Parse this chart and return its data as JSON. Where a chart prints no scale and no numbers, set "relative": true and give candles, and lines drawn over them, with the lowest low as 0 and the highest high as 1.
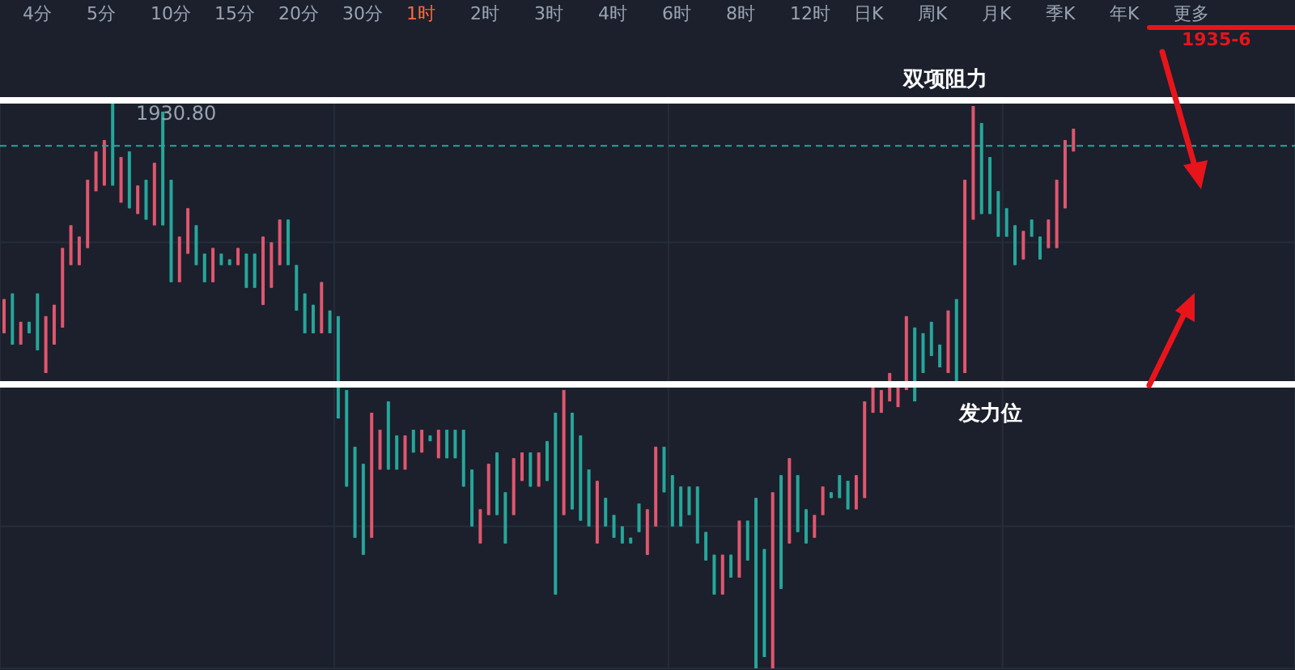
{
  "chart_data": {
    "type": "candlestick",
    "relative": true,
    "grid": true,
    "categories": [
      null,
      null,
      null,
      null,
      null,
      null,
      null,
      null,
      null,
      null,
      null,
      null,
      null,
      null,
      null,
      null,
      null,
      null,
      null,
      null,
      null,
      null,
      null,
      null,
      null,
      null,
      null,
      null,
      null,
      null,
      null,
      null,
      null,
      null,
      null,
      null,
      null,
      null,
      null,
      null,
      null,
      null,
      null,
      null,
      null,
      null,
      null,
      null,
      null,
      null,
      null,
      null,
      null,
      null,
      null,
      null,
      null,
      null,
      null,
      null,
      null,
      null,
      null,
      null,
      null,
      null,
      null,
      null,
      null,
      null,
      null,
      null,
      null,
      null,
      null,
      null,
      null,
      null,
      null,
      null,
      null,
      null,
      null,
      null,
      null,
      null,
      null,
      null,
      null,
      null,
      null,
      null,
      null,
      null,
      null,
      null,
      null,
      null,
      null,
      null,
      null,
      null,
      null,
      null,
      null,
      null,
      null,
      null,
      null,
      null,
      null,
      null,
      null,
      null,
      null,
      null,
      null,
      null,
      null,
      null,
      null,
      null,
      null,
      null,
      null,
      null,
      null,
      null,
      null,
      null,
      null,
      null,
      null,
      null,
      null,
      null,
      null,
      null,
      null,
      null,
      null,
      null,
      null,
      null,
      null,
      null,
      null,
      null,
      null,
      null,
      null,
      null,
      null,
      null,
      null
    ],
    "ohlc": [
      [
        0.59,
        0.65,
        0.59,
        0.65
      ],
      [
        0.66,
        0.66,
        0.57,
        0.57
      ],
      [
        0.57,
        0.61,
        0.57,
        0.61
      ],
      [
        0.61,
        0.61,
        0.59,
        0.59
      ],
      [
        0.66,
        0.66,
        0.56,
        0.56
      ],
      [
        0.52,
        0.62,
        0.52,
        0.62
      ],
      [
        0.57,
        0.64,
        0.57,
        0.64
      ],
      [
        0.6,
        0.74,
        0.6,
        0.74
      ],
      [
        0.71,
        0.78,
        0.71,
        0.78
      ],
      [
        0.71,
        0.76,
        0.71,
        0.76
      ],
      [
        0.74,
        0.86,
        0.74,
        0.86
      ],
      [
        0.84,
        0.91,
        0.84,
        0.91
      ],
      [
        0.85,
        0.93,
        0.85,
        0.93
      ],
      [
        1.0,
        1.0,
        0.85,
        0.85
      ],
      [
        0.82,
        0.9,
        0.82,
        0.9
      ],
      [
        0.91,
        0.91,
        0.81,
        0.81
      ],
      [
        0.8,
        0.85,
        0.8,
        0.85
      ],
      [
        0.86,
        0.86,
        0.79,
        0.79
      ],
      [
        0.78,
        0.89,
        0.78,
        0.89
      ],
      [
        0.98,
        0.98,
        0.78,
        0.78
      ],
      [
        0.86,
        0.86,
        0.68,
        0.68
      ],
      [
        0.68,
        0.76,
        0.68,
        0.76
      ],
      [
        0.73,
        0.81,
        0.73,
        0.81
      ],
      [
        0.78,
        0.78,
        0.71,
        0.71
      ],
      [
        0.73,
        0.73,
        0.68,
        0.68
      ],
      [
        0.68,
        0.74,
        0.68,
        0.74
      ],
      [
        0.73,
        0.73,
        0.71,
        0.71
      ],
      [
        0.72,
        0.72,
        0.71,
        0.71
      ],
      [
        0.71,
        0.74,
        0.71,
        0.74
      ],
      [
        0.73,
        0.73,
        0.67,
        0.67
      ],
      [
        0.73,
        0.73,
        0.67,
        0.67
      ],
      [
        0.64,
        0.76,
        0.64,
        0.76
      ],
      [
        0.67,
        0.75,
        0.67,
        0.75
      ],
      [
        0.71,
        0.79,
        0.71,
        0.79
      ],
      [
        0.79,
        0.79,
        0.71,
        0.71
      ],
      [
        0.71,
        0.71,
        0.63,
        0.63
      ],
      [
        0.66,
        0.66,
        0.59,
        0.59
      ],
      [
        0.64,
        0.64,
        0.59,
        0.59
      ],
      [
        0.59,
        0.68,
        0.59,
        0.68
      ],
      [
        0.63,
        0.63,
        0.59,
        0.59
      ],
      [
        0.62,
        0.62,
        0.44,
        0.44
      ],
      [
        0.49,
        0.49,
        0.32,
        0.32
      ],
      [
        0.39,
        0.39,
        0.23,
        0.23
      ],
      [
        0.36,
        0.36,
        0.2,
        0.2
      ],
      [
        0.23,
        0.45,
        0.23,
        0.45
      ],
      [
        0.35,
        0.42,
        0.35,
        0.42
      ],
      [
        0.47,
        0.47,
        0.35,
        0.35
      ],
      [
        0.41,
        0.41,
        0.35,
        0.35
      ],
      [
        0.35,
        0.41,
        0.35,
        0.41
      ],
      [
        0.42,
        0.42,
        0.38,
        0.38
      ],
      [
        0.38,
        0.42,
        0.38,
        0.42
      ],
      [
        0.41,
        0.41,
        0.4,
        0.4
      ],
      [
        0.37,
        0.42,
        0.37,
        0.42
      ],
      [
        0.42,
        0.42,
        0.37,
        0.37
      ],
      [
        0.42,
        0.42,
        0.37,
        0.37
      ],
      [
        0.42,
        0.42,
        0.32,
        0.32
      ],
      [
        0.35,
        0.35,
        0.25,
        0.25
      ],
      [
        0.22,
        0.28,
        0.22,
        0.28
      ],
      [
        0.27,
        0.36,
        0.27,
        0.36
      ],
      [
        0.38,
        0.38,
        0.27,
        0.27
      ],
      [
        0.31,
        0.31,
        0.22,
        0.22
      ],
      [
        0.27,
        0.37,
        0.27,
        0.37
      ],
      [
        0.33,
        0.38,
        0.33,
        0.38
      ],
      [
        0.38,
        0.38,
        0.32,
        0.32
      ],
      [
        0.32,
        0.38,
        0.32,
        0.38
      ],
      [
        0.4,
        0.4,
        0.33,
        0.33
      ],
      [
        0.45,
        0.45,
        0.13,
        0.13
      ],
      [
        0.27,
        0.49,
        0.27,
        0.49
      ],
      [
        0.45,
        0.45,
        0.28,
        0.28
      ],
      [
        0.41,
        0.41,
        0.26,
        0.26
      ],
      [
        0.35,
        0.35,
        0.25,
        0.25
      ],
      [
        0.22,
        0.33,
        0.22,
        0.33
      ],
      [
        0.3,
        0.3,
        0.25,
        0.25
      ],
      [
        0.27,
        0.27,
        0.23,
        0.23
      ],
      [
        0.25,
        0.25,
        0.22,
        0.22
      ],
      [
        0.23,
        0.23,
        0.22,
        0.22
      ],
      [
        0.29,
        0.29,
        0.24,
        0.24
      ],
      [
        0.2,
        0.28,
        0.2,
        0.28
      ],
      [
        0.25,
        0.39,
        0.25,
        0.39
      ],
      [
        0.39,
        0.39,
        0.31,
        0.31
      ],
      [
        0.34,
        0.34,
        0.25,
        0.25
      ],
      [
        0.32,
        0.32,
        0.25,
        0.25
      ],
      [
        0.32,
        0.32,
        0.27,
        0.27
      ],
      [
        0.32,
        0.32,
        0.22,
        0.22
      ],
      [
        0.24,
        0.24,
        0.19,
        0.19
      ],
      [
        0.2,
        0.2,
        0.13,
        0.13
      ],
      [
        0.13,
        0.2,
        0.13,
        0.2
      ],
      [
        0.2,
        0.2,
        0.16,
        0.16
      ],
      [
        0.16,
        0.26,
        0.16,
        0.26
      ],
      [
        0.26,
        0.26,
        0.19,
        0.19
      ],
      [
        0.3,
        0.3,
        0,
        0
      ],
      [
        0.21,
        0.21,
        0.02,
        0.02
      ],
      [
        0,
        0.31,
        0,
        0.31
      ],
      [
        0.34,
        0.34,
        0.14,
        0.14
      ],
      [
        0.22,
        0.37,
        0.22,
        0.37
      ],
      [
        0.34,
        0.34,
        0.24,
        0.24
      ],
      [
        0.28,
        0.28,
        0.22,
        0.22
      ],
      [
        0.23,
        0.27,
        0.23,
        0.27
      ],
      [
        0.27,
        0.32,
        0.27,
        0.32
      ],
      [
        0.31,
        0.31,
        0.3,
        0.3
      ],
      [
        0.34,
        0.34,
        0.3,
        0.3
      ],
      [
        0.33,
        0.33,
        0.28,
        0.28
      ],
      [
        0.28,
        0.34,
        0.28,
        0.34
      ],
      [
        0.3,
        0.47,
        0.3,
        0.47
      ],
      [
        0.45,
        0.5,
        0.45,
        0.5
      ],
      [
        0.45,
        0.49,
        0.45,
        0.49
      ],
      [
        0.47,
        0.52,
        0.47,
        0.52
      ],
      [
        0.46,
        0.5,
        0.46,
        0.5
      ],
      [
        0.49,
        0.62,
        0.49,
        0.62
      ],
      [
        0.6,
        0.6,
        0.47,
        0.47
      ],
      [
        0.59,
        0.59,
        0.52,
        0.52
      ],
      [
        0.61,
        0.61,
        0.55,
        0.55
      ],
      [
        0.57,
        0.57,
        0.53,
        0.53
      ],
      [
        0.52,
        0.63,
        0.52,
        0.63
      ],
      [
        0.65,
        0.65,
        0.5,
        0.5
      ],
      [
        0.52,
        0.86,
        0.52,
        0.86
      ],
      [
        0.79,
        0.99,
        0.79,
        0.99
      ],
      [
        0.96,
        0.96,
        0.8,
        0.8
      ],
      [
        0.9,
        0.9,
        0.8,
        0.8
      ],
      [
        0.84,
        0.84,
        0.76,
        0.76
      ],
      [
        0.81,
        0.81,
        0.76,
        0.76
      ],
      [
        0.78,
        0.78,
        0.71,
        0.71
      ],
      [
        0.72,
        0.77,
        0.72,
        0.77
      ],
      [
        0.79,
        0.79,
        0.76,
        0.76
      ],
      [
        0.76,
        0.76,
        0.72,
        0.72
      ],
      [
        0.74,
        0.79,
        0.74,
        0.79
      ],
      [
        0.74,
        0.86,
        0.74,
        0.86
      ],
      [
        0.81,
        0.93,
        0.81,
        0.93
      ],
      [
        0.91,
        0.95,
        0.91,
        0.95
      ],
      null,
      null,
      null,
      null,
      null,
      null,
      null,
      null,
      null,
      null,
      null,
      null,
      null,
      null,
      null,
      null,
      null,
      null,
      null,
      null,
      null,
      null,
      null,
      null,
      null,
      null
    ],
    "colors": [
      "#e0566e",
      "#26a69a",
      "#e0566e",
      "#26a69a",
      "#26a69a",
      "#e0566e",
      "#e0566e",
      "#e0566e",
      "#e0566e",
      "#e0566e",
      "#e0566e",
      "#e0566e",
      "#e0566e",
      "#26a69a",
      "#e0566e",
      "#26a69a",
      "#e0566e",
      "#26a69a",
      "#e0566e",
      "#26a69a",
      "#26a69a",
      "#e0566e",
      "#e0566e",
      "#26a69a",
      "#26a69a",
      "#e0566e",
      "#26a69a",
      "#26a69a",
      "#e0566e",
      "#26a69a",
      "#26a69a",
      "#e0566e",
      "#e0566e",
      "#e0566e",
      "#26a69a",
      "#26a69a",
      "#26a69a",
      "#26a69a",
      "#e0566e",
      "#26a69a",
      "#26a69a",
      "#26a69a",
      "#26a69a",
      "#26a69a",
      "#e0566e",
      "#e0566e",
      "#26a69a",
      "#26a69a",
      "#e0566e",
      "#26a69a",
      "#e0566e",
      "#26a69a",
      "#e0566e",
      "#26a69a",
      "#26a69a",
      "#26a69a",
      "#26a69a",
      "#e0566e",
      "#e0566e",
      "#26a69a",
      "#26a69a",
      "#e0566e",
      "#e0566e",
      "#26a69a",
      "#e0566e",
      "#26a69a",
      "#26a69a",
      "#e0566e",
      "#26a69a",
      "#26a69a",
      "#26a69a",
      "#e0566e",
      "#26a69a",
      "#26a69a",
      "#26a69a",
      "#26a69a",
      "#26a69a",
      "#e0566e",
      "#e0566e",
      "#26a69a",
      "#26a69a",
      "#26a69a",
      "#26a69a",
      "#26a69a",
      "#26a69a",
      "#26a69a",
      "#e0566e",
      "#26a69a",
      "#e0566e",
      "#26a69a",
      "#26a69a",
      "#26a69a",
      "#e0566e",
      "#26a69a",
      "#e0566e",
      "#26a69a",
      "#26a69a",
      "#e0566e",
      "#e0566e",
      "#26a69a",
      "#26a69a",
      "#26a69a",
      "#e0566e",
      "#e0566e",
      "#e0566e",
      "#e0566e",
      "#e0566e",
      "#e0566e",
      "#e0566e",
      "#26a69a",
      "#26a69a",
      "#26a69a",
      "#26a69a",
      "#e0566e",
      "#26a69a",
      "#e0566e",
      "#e0566e",
      "#26a69a",
      "#26a69a",
      "#26a69a",
      "#26a69a",
      "#26a69a",
      "#e0566e",
      "#26a69a",
      "#26a69a",
      "#e0566e",
      "#e0566e",
      "#e0566e",
      "#e0566e",
      null,
      null,
      null,
      null,
      null,
      null,
      null,
      null,
      null,
      null,
      null,
      null,
      null,
      null,
      null,
      null,
      null,
      null,
      null,
      null,
      null,
      null,
      null,
      null,
      null,
      null
    ],
    "ref_lines": [
      {
        "axis": "y",
        "value": 1.0,
        "label": "双项阻力",
        "color": "#ffffff"
      },
      {
        "axis": "y",
        "value": 0.5,
        "label": "发力位",
        "color": "#ffffff"
      },
      {
        "axis": "y",
        "value": 0.92,
        "color": "#26a69a",
        "line_style": "dashed"
      }
    ],
    "annotations": [
      "4分",
      "5分",
      "10分",
      "15分",
      "20分",
      "30分",
      "1时",
      "2时",
      "3时",
      "4时",
      "6时",
      "8时",
      "12时",
      "日K",
      "周K",
      "月K",
      "季K",
      "年K",
      "更多",
      "1930.80",
      "1935-6"
    ]
  }
}
